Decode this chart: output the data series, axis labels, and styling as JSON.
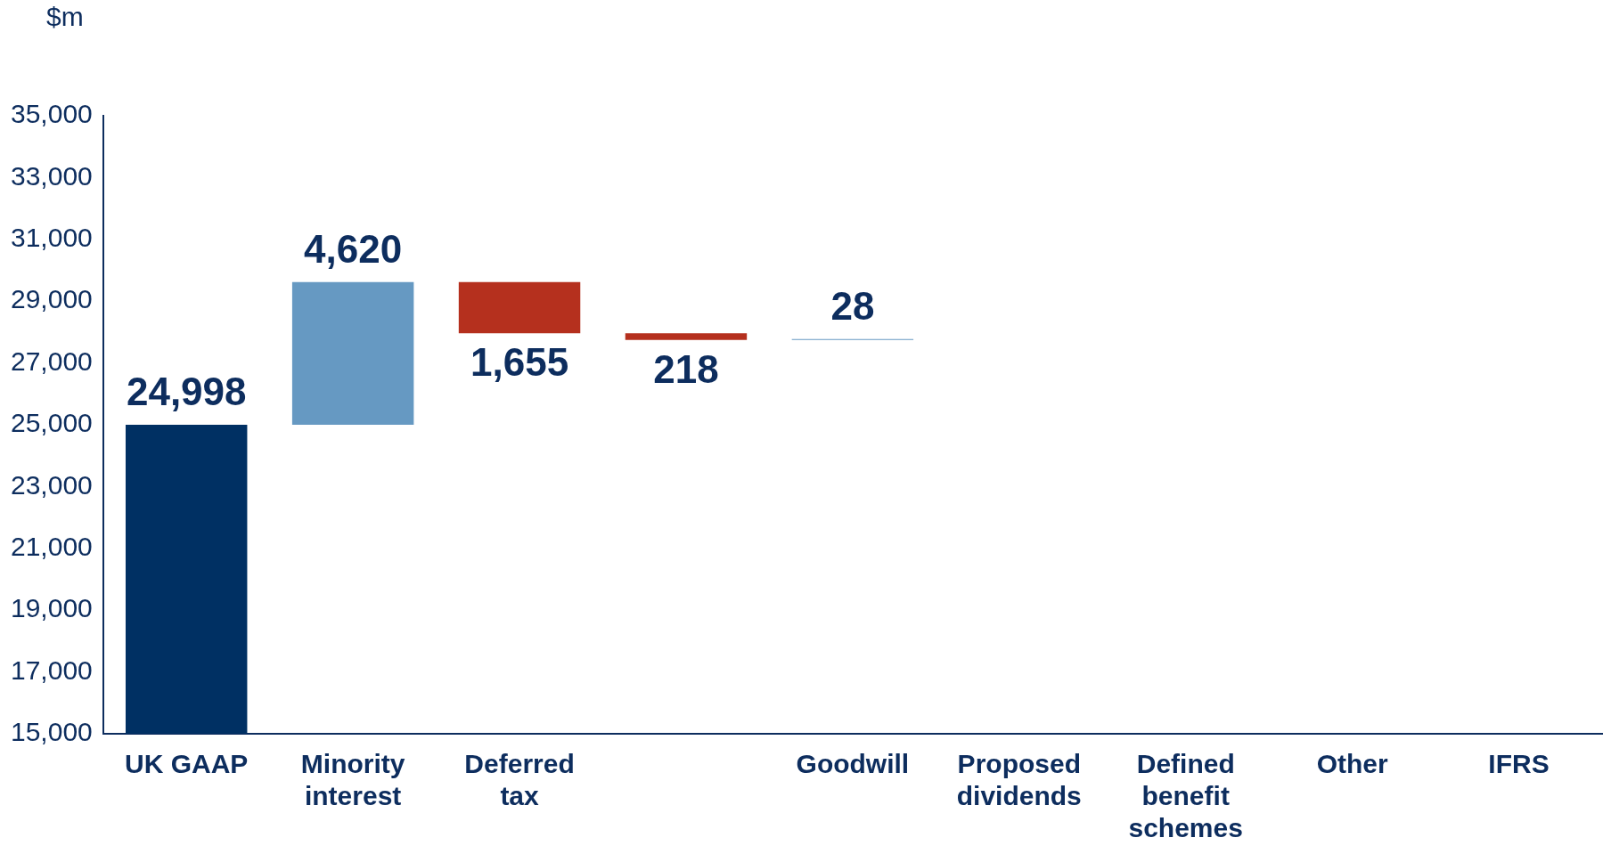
{
  "chart_data": {
    "type": "bar",
    "ylabel": "$m",
    "categories": [
      "UK GAAP",
      "Minority interest",
      "Deferred tax",
      null,
      "Goodwill",
      "Proposed dividends",
      "Defined benefit schemes",
      "Other",
      "IFRS"
    ],
    "values": [
      24998,
      4620,
      -1655,
      -218,
      28,
      null,
      null,
      null,
      null
    ],
    "base": [
      null,
      24998,
      29618,
      27963,
      27745,
      null,
      null,
      null,
      null
    ],
    "colors": [
      "#003063",
      "#6699c2",
      "#b5301e",
      "#b5301e",
      "#6699c2",
      "#6699c2",
      "#6699c2",
      "#6699c2",
      "#6699c2"
    ],
    "value_labels": [
      "24,998",
      "4,620",
      "1,655",
      "218",
      "28",
      null,
      null,
      null,
      null
    ],
    "ylim": [
      15000,
      35000
    ],
    "yticks": [
      {
        "value": 15000,
        "label": "15,000"
      },
      {
        "value": 17000,
        "label": "17,000"
      },
      {
        "value": 19000,
        "label": "19,000"
      },
      {
        "value": 21000,
        "label": "21,000"
      },
      {
        "value": 23000,
        "label": "23,000"
      },
      {
        "value": 25000,
        "label": "25,000"
      },
      {
        "value": 27000,
        "label": "27,000"
      },
      {
        "value": 29000,
        "label": "29,000"
      },
      {
        "value": 31000,
        "label": "31,000"
      },
      {
        "value": 33000,
        "label": "33,000"
      },
      {
        "value": 35000,
        "label": "35,000"
      }
    ],
    "grid": false,
    "legend": false
  }
}
